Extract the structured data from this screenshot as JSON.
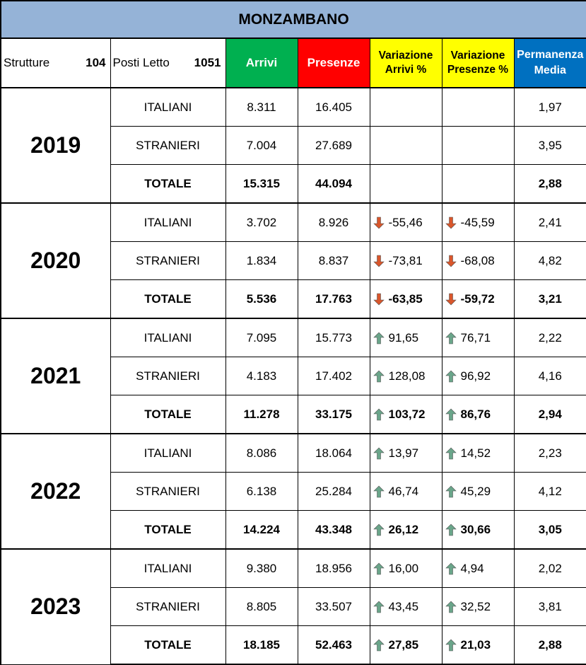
{
  "title": "MONZAMBANO",
  "header": {
    "strutture_label": "Strutture",
    "strutture_value": "104",
    "posti_label": "Posti Letto",
    "posti_value": "1051",
    "arrivi": "Arrivi",
    "presenze": "Presenze",
    "var_arrivi": "Variazione Arrivi %",
    "var_presenze": "Variazione Presenze %",
    "permanenza": "Permanenza Media"
  },
  "colors": {
    "title_bg": "#95b3d7",
    "arrivi_bg": "#00b050",
    "presenze_bg": "#ff0000",
    "variazione_bg": "#ffff00",
    "permanenza_bg": "#0070c0",
    "arrow_up": "#6aa58a",
    "arrow_down": "#d9562b"
  },
  "years": [
    {
      "year": "2019",
      "rows": [
        {
          "type": "ITALIANI",
          "arrivi": "8.311",
          "presenze": "16.405",
          "var_arrivi": "",
          "var_arrivi_dir": "",
          "var_presenze": "",
          "var_presenze_dir": "",
          "permanenza": "1,97"
        },
        {
          "type": "STRANIERI",
          "arrivi": "7.004",
          "presenze": "27.689",
          "var_arrivi": "",
          "var_arrivi_dir": "",
          "var_presenze": "",
          "var_presenze_dir": "",
          "permanenza": "3,95"
        },
        {
          "type": "TOTALE",
          "arrivi": "15.315",
          "presenze": "44.094",
          "var_arrivi": "",
          "var_arrivi_dir": "",
          "var_presenze": "",
          "var_presenze_dir": "",
          "permanenza": "2,88"
        }
      ]
    },
    {
      "year": "2020",
      "rows": [
        {
          "type": "ITALIANI",
          "arrivi": "3.702",
          "presenze": "8.926",
          "var_arrivi": "-55,46",
          "var_arrivi_dir": "down",
          "var_presenze": "-45,59",
          "var_presenze_dir": "down",
          "permanenza": "2,41"
        },
        {
          "type": "STRANIERI",
          "arrivi": "1.834",
          "presenze": "8.837",
          "var_arrivi": "-73,81",
          "var_arrivi_dir": "down",
          "var_presenze": "-68,08",
          "var_presenze_dir": "down",
          "permanenza": "4,82"
        },
        {
          "type": "TOTALE",
          "arrivi": "5.536",
          "presenze": "17.763",
          "var_arrivi": "-63,85",
          "var_arrivi_dir": "down",
          "var_presenze": "-59,72",
          "var_presenze_dir": "down",
          "permanenza": "3,21"
        }
      ]
    },
    {
      "year": "2021",
      "rows": [
        {
          "type": "ITALIANI",
          "arrivi": "7.095",
          "presenze": "15.773",
          "var_arrivi": "91,65",
          "var_arrivi_dir": "up",
          "var_presenze": "76,71",
          "var_presenze_dir": "up",
          "permanenza": "2,22"
        },
        {
          "type": "STRANIERI",
          "arrivi": "4.183",
          "presenze": "17.402",
          "var_arrivi": "128,08",
          "var_arrivi_dir": "up",
          "var_presenze": "96,92",
          "var_presenze_dir": "up",
          "permanenza": "4,16"
        },
        {
          "type": "TOTALE",
          "arrivi": "11.278",
          "presenze": "33.175",
          "var_arrivi": "103,72",
          "var_arrivi_dir": "up",
          "var_presenze": "86,76",
          "var_presenze_dir": "up",
          "permanenza": "2,94"
        }
      ]
    },
    {
      "year": "2022",
      "rows": [
        {
          "type": "ITALIANI",
          "arrivi": "8.086",
          "presenze": "18.064",
          "var_arrivi": "13,97",
          "var_arrivi_dir": "up",
          "var_presenze": "14,52",
          "var_presenze_dir": "up",
          "permanenza": "2,23"
        },
        {
          "type": "STRANIERI",
          "arrivi": "6.138",
          "presenze": "25.284",
          "var_arrivi": "46,74",
          "var_arrivi_dir": "up",
          "var_presenze": "45,29",
          "var_presenze_dir": "up",
          "permanenza": "4,12"
        },
        {
          "type": "TOTALE",
          "arrivi": "14.224",
          "presenze": "43.348",
          "var_arrivi": "26,12",
          "var_arrivi_dir": "up",
          "var_presenze": "30,66",
          "var_presenze_dir": "up",
          "permanenza": "3,05"
        }
      ]
    },
    {
      "year": "2023",
      "rows": [
        {
          "type": "ITALIANI",
          "arrivi": "9.380",
          "presenze": "18.956",
          "var_arrivi": "16,00",
          "var_arrivi_dir": "up",
          "var_presenze": "4,94",
          "var_presenze_dir": "up",
          "permanenza": "2,02"
        },
        {
          "type": "STRANIERI",
          "arrivi": "8.805",
          "presenze": "33.507",
          "var_arrivi": "43,45",
          "var_arrivi_dir": "up",
          "var_presenze": "32,52",
          "var_presenze_dir": "up",
          "permanenza": "3,81"
        },
        {
          "type": "TOTALE",
          "arrivi": "18.185",
          "presenze": "52.463",
          "var_arrivi": "27,85",
          "var_arrivi_dir": "up",
          "var_presenze": "21,03",
          "var_presenze_dir": "up",
          "permanenza": "2,88"
        }
      ]
    }
  ]
}
